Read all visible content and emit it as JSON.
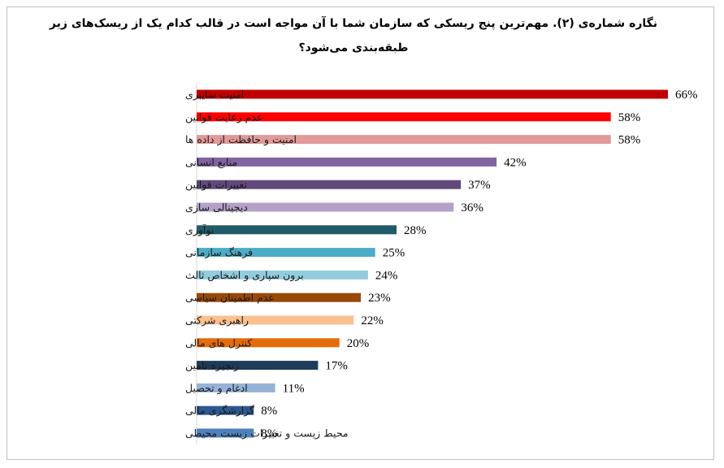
{
  "chart_data": {
    "type": "bar",
    "orientation": "horizontal",
    "title": "نگاره شماره‌ی (۲). مهم‌ترین پنج ریسکی که سازمان شما با آن مواجه است در قالب کدام یک از ریسک‌های زیر طبقه‌بندی می‌شود؟",
    "categories": [
      "امنیت سایبری",
      "عدم رعایت قوانین",
      "امنیت و حافظت از داده ها",
      "منابع انسانی",
      "تغییرات قوانین",
      "دیجیتالی سازی",
      "نوآوری",
      "فرهنگ سازمانی",
      "برون سپاری و اشخاص ثالث",
      "عدم اطمینان سیاسی",
      "راهبری شرکتی",
      "کنترل های مالی",
      "زنجیره تامین",
      "ادغام و تحصیل",
      "گزارشگری مالی",
      "محیط زیست و تغییرات زیست محیطی"
    ],
    "values": [
      66,
      58,
      58,
      42,
      37,
      36,
      28,
      25,
      24,
      23,
      22,
      20,
      17,
      11,
      8,
      8
    ],
    "value_labels": [
      "66%",
      "58%",
      "58%",
      "42%",
      "37%",
      "36%",
      "28%",
      "25%",
      "24%",
      "23%",
      "22%",
      "20%",
      "17%",
      "11%",
      "8%",
      "8%"
    ],
    "colors": [
      "#c00000",
      "#ff0000",
      "#e09a9a",
      "#8064a2",
      "#604a7b",
      "#b3a2c7",
      "#215a69",
      "#4bacc6",
      "#93cddd",
      "#984807",
      "#fac090",
      "#e46c0a",
      "#1f3b5a",
      "#95b3d7",
      "#2c5a90",
      "#4f81bd"
    ],
    "xlim": [
      0,
      66
    ],
    "grid": false,
    "legend": "none"
  }
}
